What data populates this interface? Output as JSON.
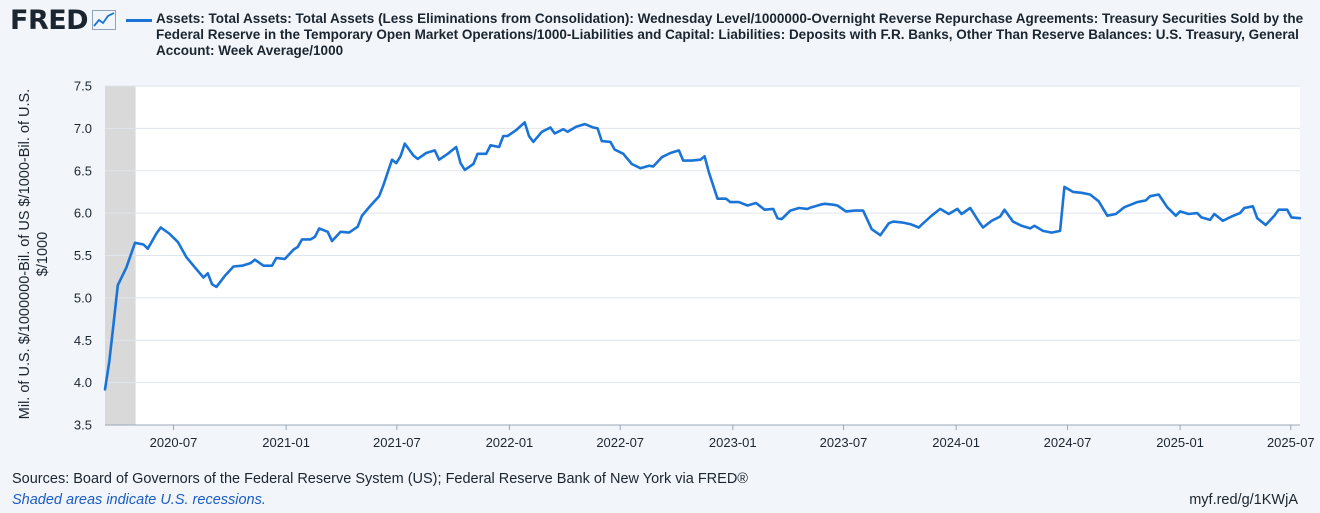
{
  "brand": {
    "name": "FRED",
    "icon": "line-chart-icon"
  },
  "legend": {
    "text": "Assets: Total Assets: Total Assets (Less Eliminations from Consolidation): Wednesday Level/1000000-Overnight Reverse Repurchase Agreements: Treasury Securities Sold by the Federal Reserve in the Temporary Open Market Operations/1000-Liabilities and Capital: Liabilities: Deposits with F.R. Banks, Other Than Reserve Balances: U.S. Treasury, General Account: Week Average/1000",
    "color": "#1a74d8"
  },
  "footer": {
    "sources": "Sources: Board of Governors of the Federal Reserve System (US); Federal Reserve Bank of New York via FRED®",
    "recession_note": "Shaded areas indicate U.S. recessions.",
    "link": "myf.red/g/1KWjA"
  },
  "chart_data": {
    "type": "line",
    "ylabel": "Mil. of U.S. $/1000000-Bil. of US $/1000-Bil. of U.S. $/1000",
    "ylim": [
      3.5,
      7.5
    ],
    "yticks": [
      "3.5",
      "4.0",
      "4.5",
      "5.0",
      "5.5",
      "6.0",
      "6.5",
      "7.0",
      "7.5"
    ],
    "xlim": [
      "2020-03-11",
      "2025-07-16"
    ],
    "xticks": [
      "2020-07",
      "2021-01",
      "2021-07",
      "2022-01",
      "2022-07",
      "2023-01",
      "2023-07",
      "2024-01",
      "2024-07",
      "2025-01",
      "2025-07"
    ],
    "recessions": [
      {
        "start": "2020-03-01",
        "end": "2020-04-30"
      }
    ],
    "grid": true,
    "colors": {
      "line": "#1a74d8",
      "recession": "#d9d9d9",
      "grid": "#dfe5ec"
    },
    "series": [
      {
        "name": "Assets: Total Assets: Total Assets (Less Eliminations from Consolidation): Wednesday Level/1000000-Overnight Reverse Repurchase Agreements: Treasury Securities Sold by the Federal Reserve in the Temporary Open Market Operations/1000-Liabilities and Capital: Liabilities: Deposits with F.R. Banks, Other Than Reserve Balances: U.S. Treasury, General Account: Week Average/1000",
        "points": [
          [
            "2020-03-11",
            3.92
          ],
          [
            "2020-03-18",
            4.25
          ],
          [
            "2020-03-25",
            4.7
          ],
          [
            "2020-04-01",
            5.15
          ],
          [
            "2020-04-15",
            5.36
          ],
          [
            "2020-04-29",
            5.65
          ],
          [
            "2020-05-13",
            5.63
          ],
          [
            "2020-05-20",
            5.58
          ],
          [
            "2020-06-03",
            5.76
          ],
          [
            "2020-06-10",
            5.83
          ],
          [
            "2020-06-24",
            5.76
          ],
          [
            "2020-07-08",
            5.66
          ],
          [
            "2020-07-22",
            5.48
          ],
          [
            "2020-08-05",
            5.36
          ],
          [
            "2020-08-19",
            5.24
          ],
          [
            "2020-08-26",
            5.29
          ],
          [
            "2020-09-02",
            5.16
          ],
          [
            "2020-09-09",
            5.13
          ],
          [
            "2020-09-23",
            5.26
          ],
          [
            "2020-10-07",
            5.37
          ],
          [
            "2020-10-21",
            5.38
          ],
          [
            "2020-11-04",
            5.41
          ],
          [
            "2020-11-11",
            5.45
          ],
          [
            "2020-11-25",
            5.38
          ],
          [
            "2020-12-09",
            5.38
          ],
          [
            "2020-12-16",
            5.47
          ],
          [
            "2020-12-30",
            5.46
          ],
          [
            "2021-01-13",
            5.57
          ],
          [
            "2021-01-20",
            5.6
          ],
          [
            "2021-01-27",
            5.69
          ],
          [
            "2021-02-10",
            5.69
          ],
          [
            "2021-02-17",
            5.72
          ],
          [
            "2021-02-24",
            5.82
          ],
          [
            "2021-03-10",
            5.78
          ],
          [
            "2021-03-17",
            5.67
          ],
          [
            "2021-03-31",
            5.78
          ],
          [
            "2021-04-14",
            5.77
          ],
          [
            "2021-04-28",
            5.84
          ],
          [
            "2021-05-05",
            5.97
          ],
          [
            "2021-05-19",
            6.09
          ],
          [
            "2021-06-02",
            6.2
          ],
          [
            "2021-06-09",
            6.33
          ],
          [
            "2021-06-23",
            6.63
          ],
          [
            "2021-06-30",
            6.59
          ],
          [
            "2021-07-07",
            6.67
          ],
          [
            "2021-07-14",
            6.82
          ],
          [
            "2021-07-28",
            6.68
          ],
          [
            "2021-08-04",
            6.64
          ],
          [
            "2021-08-18",
            6.71
          ],
          [
            "2021-09-01",
            6.74
          ],
          [
            "2021-09-08",
            6.63
          ],
          [
            "2021-09-22",
            6.7
          ],
          [
            "2021-10-06",
            6.78
          ],
          [
            "2021-10-13",
            6.59
          ],
          [
            "2021-10-20",
            6.51
          ],
          [
            "2021-11-03",
            6.58
          ],
          [
            "2021-11-10",
            6.7
          ],
          [
            "2021-11-24",
            6.7
          ],
          [
            "2021-12-01",
            6.8
          ],
          [
            "2021-12-15",
            6.78
          ],
          [
            "2021-12-22",
            6.91
          ],
          [
            "2021-12-29",
            6.91
          ],
          [
            "2022-01-12",
            6.98
          ],
          [
            "2022-01-26",
            7.07
          ],
          [
            "2022-02-02",
            6.91
          ],
          [
            "2022-02-09",
            6.84
          ],
          [
            "2022-02-23",
            6.96
          ],
          [
            "2022-03-09",
            7.01
          ],
          [
            "2022-03-16",
            6.94
          ],
          [
            "2022-03-30",
            6.99
          ],
          [
            "2022-04-06",
            6.96
          ],
          [
            "2022-04-20",
            7.02
          ],
          [
            "2022-05-04",
            7.05
          ],
          [
            "2022-05-18",
            7.01
          ],
          [
            "2022-05-25",
            7.0
          ],
          [
            "2022-06-01",
            6.85
          ],
          [
            "2022-06-15",
            6.84
          ],
          [
            "2022-06-22",
            6.75
          ],
          [
            "2022-07-06",
            6.7
          ],
          [
            "2022-07-20",
            6.58
          ],
          [
            "2022-08-03",
            6.53
          ],
          [
            "2022-08-17",
            6.56
          ],
          [
            "2022-08-24",
            6.55
          ],
          [
            "2022-09-07",
            6.66
          ],
          [
            "2022-09-21",
            6.71
          ],
          [
            "2022-10-05",
            6.74
          ],
          [
            "2022-10-12",
            6.62
          ],
          [
            "2022-10-26",
            6.62
          ],
          [
            "2022-11-09",
            6.63
          ],
          [
            "2022-11-16",
            6.67
          ],
          [
            "2022-11-23",
            6.48
          ],
          [
            "2022-12-07",
            6.17
          ],
          [
            "2022-12-21",
            6.17
          ],
          [
            "2022-12-28",
            6.13
          ],
          [
            "2023-01-11",
            6.13
          ],
          [
            "2023-01-25",
            6.09
          ],
          [
            "2023-02-08",
            6.12
          ],
          [
            "2023-02-22",
            6.04
          ],
          [
            "2023-03-08",
            6.05
          ],
          [
            "2023-03-15",
            5.94
          ],
          [
            "2023-03-22",
            5.93
          ],
          [
            "2023-04-05",
            6.03
          ],
          [
            "2023-04-19",
            6.06
          ],
          [
            "2023-05-03",
            6.05
          ],
          [
            "2023-05-10",
            6.07
          ],
          [
            "2023-05-24",
            6.1
          ],
          [
            "2023-05-31",
            6.11
          ],
          [
            "2023-06-14",
            6.1
          ],
          [
            "2023-06-21",
            6.09
          ],
          [
            "2023-07-05",
            6.02
          ],
          [
            "2023-07-19",
            6.03
          ],
          [
            "2023-08-02",
            6.03
          ],
          [
            "2023-08-16",
            5.81
          ],
          [
            "2023-08-30",
            5.74
          ],
          [
            "2023-09-13",
            5.88
          ],
          [
            "2023-09-20",
            5.9
          ],
          [
            "2023-10-04",
            5.89
          ],
          [
            "2023-10-18",
            5.87
          ],
          [
            "2023-11-01",
            5.83
          ],
          [
            "2023-11-08",
            5.88
          ],
          [
            "2023-11-22",
            5.97
          ],
          [
            "2023-12-06",
            6.05
          ],
          [
            "2023-12-20",
            5.99
          ],
          [
            "2024-01-03",
            6.05
          ],
          [
            "2024-01-10",
            5.99
          ],
          [
            "2024-01-24",
            6.06
          ],
          [
            "2024-02-07",
            5.9
          ],
          [
            "2024-02-14",
            5.83
          ],
          [
            "2024-02-28",
            5.91
          ],
          [
            "2024-03-13",
            5.96
          ],
          [
            "2024-03-20",
            6.04
          ],
          [
            "2024-04-03",
            5.9
          ],
          [
            "2024-04-17",
            5.85
          ],
          [
            "2024-05-01",
            5.82
          ],
          [
            "2024-05-08",
            5.85
          ],
          [
            "2024-05-22",
            5.79
          ],
          [
            "2024-06-05",
            5.77
          ],
          [
            "2024-06-19",
            5.79
          ],
          [
            "2024-06-26",
            6.31
          ],
          [
            "2024-07-10",
            6.25
          ],
          [
            "2024-07-24",
            6.24
          ],
          [
            "2024-08-07",
            6.22
          ],
          [
            "2024-08-21",
            6.14
          ],
          [
            "2024-09-04",
            5.97
          ],
          [
            "2024-09-18",
            5.99
          ],
          [
            "2024-10-02",
            6.07
          ],
          [
            "2024-10-16",
            6.11
          ],
          [
            "2024-10-23",
            6.13
          ],
          [
            "2024-11-06",
            6.15
          ],
          [
            "2024-11-13",
            6.2
          ],
          [
            "2024-11-27",
            6.22
          ],
          [
            "2024-12-11",
            6.07
          ],
          [
            "2024-12-25",
            5.97
          ],
          [
            "2025-01-01",
            6.02
          ],
          [
            "2025-01-15",
            5.99
          ],
          [
            "2025-01-29",
            6.0
          ],
          [
            "2025-02-05",
            5.95
          ],
          [
            "2025-02-19",
            5.92
          ],
          [
            "2025-02-26",
            5.99
          ],
          [
            "2025-03-12",
            5.91
          ],
          [
            "2025-03-26",
            5.96
          ],
          [
            "2025-04-09",
            6.0
          ],
          [
            "2025-04-16",
            6.06
          ],
          [
            "2025-04-30",
            6.08
          ],
          [
            "2025-05-07",
            5.94
          ],
          [
            "2025-05-21",
            5.86
          ],
          [
            "2025-06-04",
            5.97
          ],
          [
            "2025-06-11",
            6.04
          ],
          [
            "2025-06-25",
            6.04
          ],
          [
            "2025-07-02",
            5.95
          ],
          [
            "2025-07-16",
            5.94
          ]
        ]
      }
    ]
  }
}
